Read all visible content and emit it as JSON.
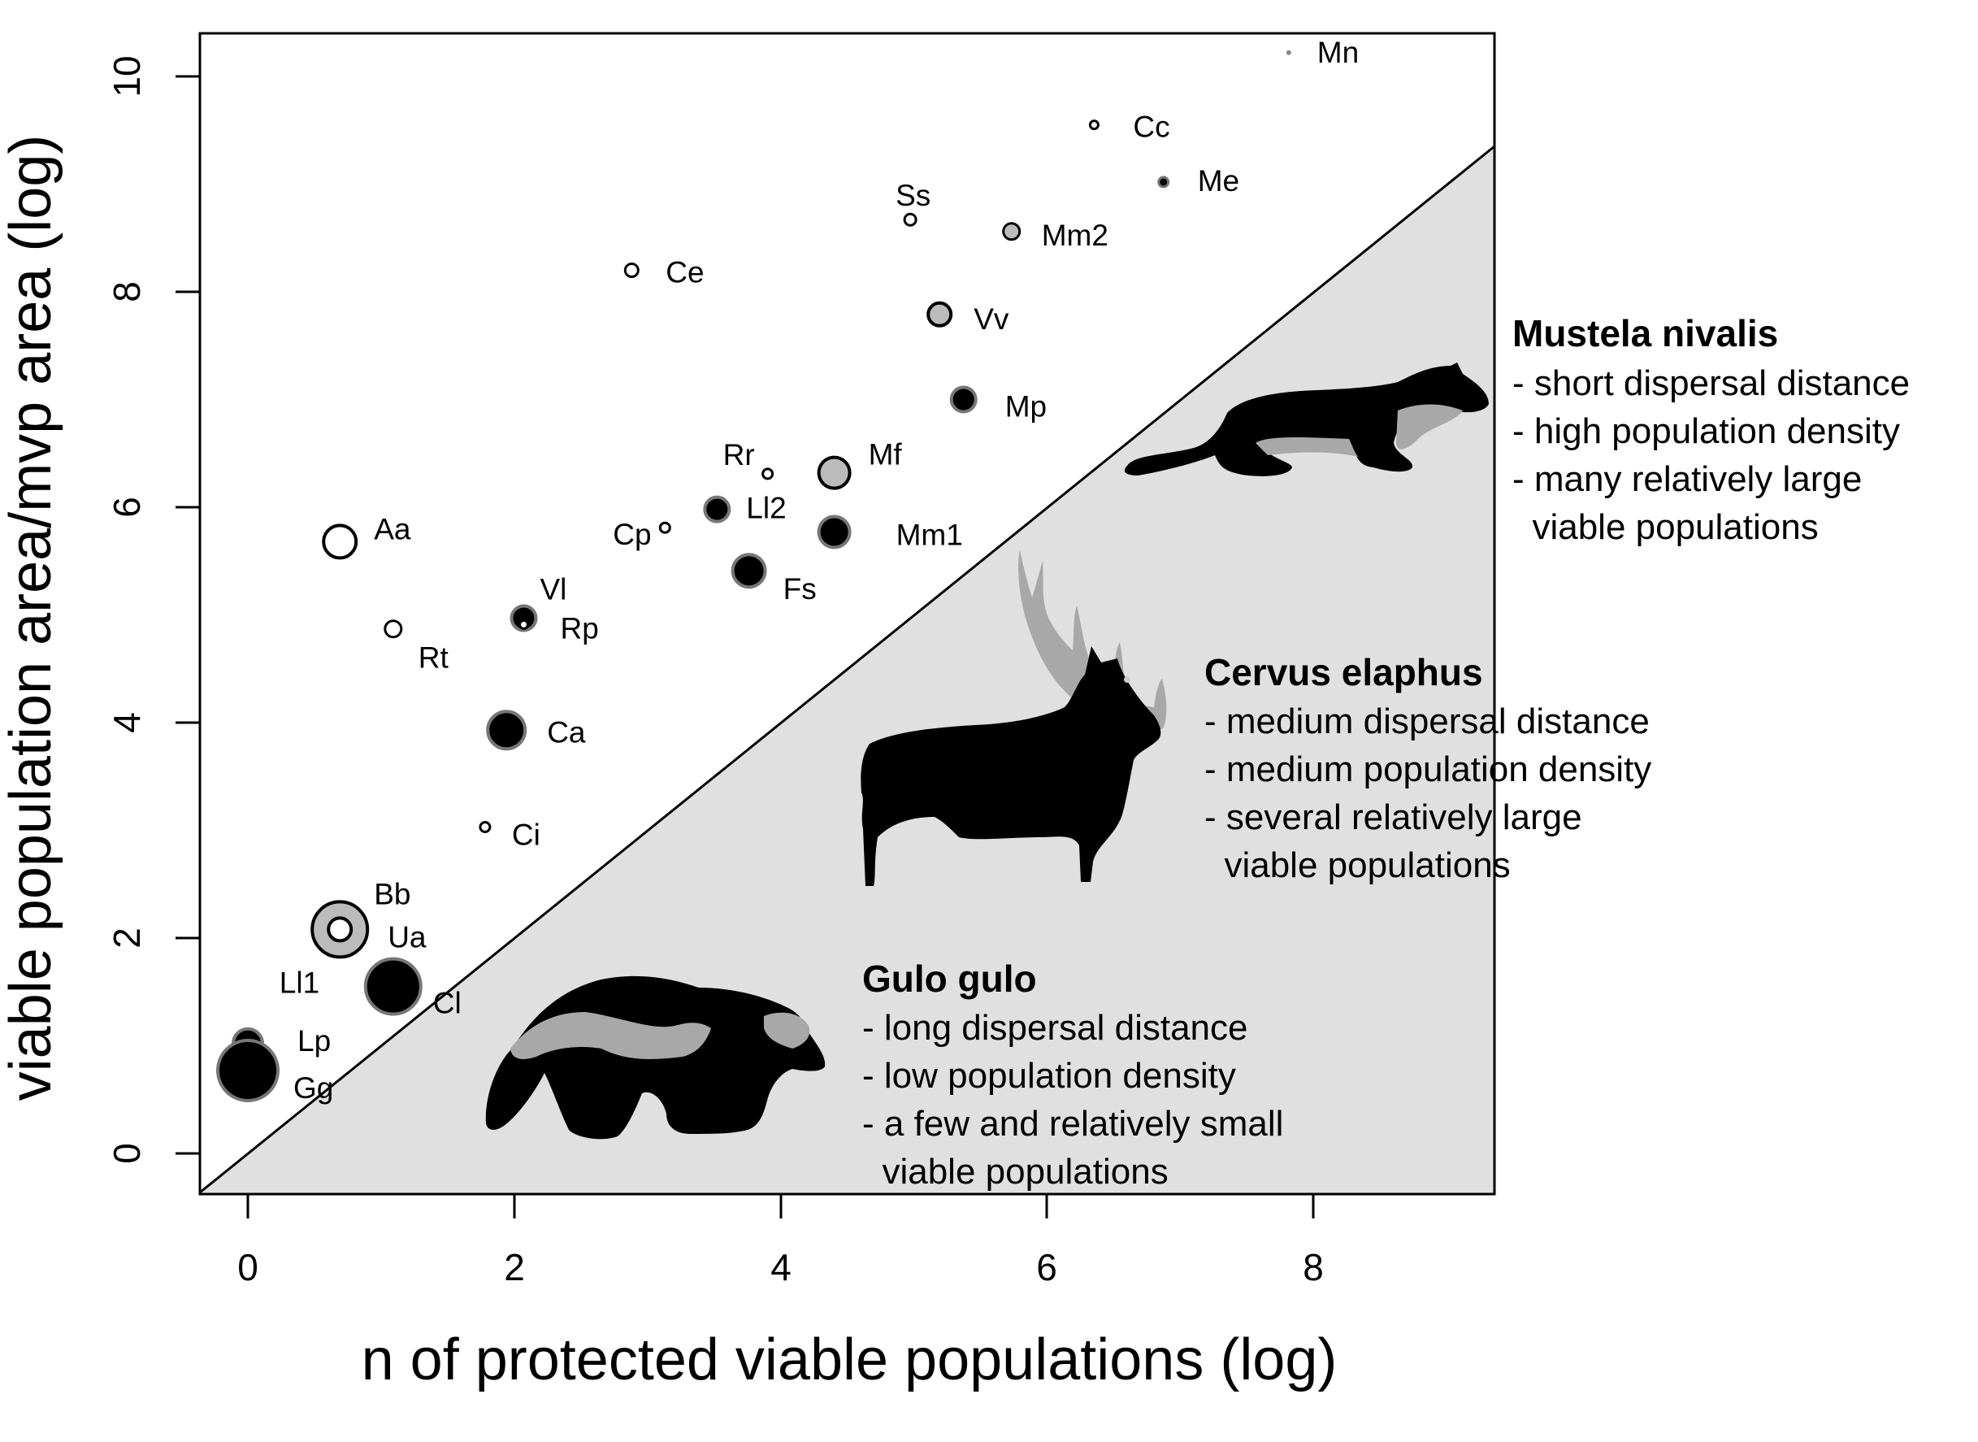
{
  "chart_data": {
    "type": "scatter",
    "title": "",
    "xlabel": "n of protected viable populations (log)",
    "ylabel": "viable population area/mvp area (log)",
    "xlim": [
      -0.36,
      9.35
    ],
    "ylim": [
      -0.38,
      10.4
    ],
    "xticks": [
      "0",
      "2",
      "4",
      "6",
      "8"
    ],
    "yticks": [
      "0",
      "2",
      "4",
      "6",
      "8",
      "10"
    ],
    "grid": false,
    "reference_line": {
      "type": "identity",
      "equation": "y = x",
      "shaded_below": true,
      "shade_color": "#e0e0e0"
    },
    "points": [
      {
        "label": "Mn",
        "x": 7.81,
        "y": 10.22,
        "r": 3,
        "fill": "#888888",
        "stroke": "none",
        "lx": 35,
        "ly": 12
      },
      {
        "label": "Cc",
        "x": 6.35,
        "y": 9.55,
        "r": 5,
        "fill": "#ffffff",
        "stroke": "#000000",
        "lx": 48,
        "ly": 15
      },
      {
        "label": "Me",
        "x": 6.87,
        "y": 9.02,
        "r": 6,
        "fill": "#000000",
        "stroke": "#777777",
        "lx": 42,
        "ly": 11
      },
      {
        "label": "Ss",
        "x": 4.97,
        "y": 8.67,
        "r": 7,
        "fill": "#ffffff",
        "stroke": "#000000",
        "lx": -18,
        "ly": -17
      },
      {
        "label": "Mm2",
        "x": 5.73,
        "y": 8.56,
        "r": 10,
        "fill": "#bbbbbb",
        "stroke": "#000000",
        "lx": 37,
        "ly": 17
      },
      {
        "label": "Ce",
        "x": 2.88,
        "y": 8.2,
        "r": 8,
        "fill": "#ffffff",
        "stroke": "#000000",
        "lx": 42,
        "ly": 15
      },
      {
        "label": "Vv",
        "x": 5.19,
        "y": 7.79,
        "r": 14,
        "fill": "#bbbbbb",
        "stroke": "#000000",
        "lx": 42,
        "ly": 18
      },
      {
        "label": "Mp",
        "x": 5.37,
        "y": 7.0,
        "r": 15,
        "fill": "#000000",
        "stroke": "#777777",
        "lx": 51,
        "ly": 21
      },
      {
        "label": "Rr",
        "x": 3.9,
        "y": 6.31,
        "r": 6,
        "fill": "#ffffff",
        "stroke": "#000000",
        "lx": -55,
        "ly": -11
      },
      {
        "label": "Mf",
        "x": 4.4,
        "y": 6.32,
        "r": 19,
        "fill": "#bbbbbb",
        "stroke": "#000000",
        "lx": 42,
        "ly": -10
      },
      {
        "label": "Ll2",
        "x": 3.52,
        "y": 5.98,
        "r": 15,
        "fill": "#000000",
        "stroke": "#777777",
        "lx": 36,
        "ly": 11
      },
      {
        "label": "Cp",
        "x": 3.13,
        "y": 5.81,
        "r": 6,
        "fill": "#ffffff",
        "stroke": "#000000",
        "lx": -64,
        "ly": 21
      },
      {
        "label": "Mm1",
        "x": 4.4,
        "y": 5.77,
        "r": 19,
        "fill": "#000000",
        "stroke": "#777777",
        "lx": 76,
        "ly": 16
      },
      {
        "label": "Aa",
        "x": 0.69,
        "y": 5.68,
        "r": 20,
        "fill": "#ffffff",
        "stroke": "#000000",
        "lx": 42,
        "ly": -3
      },
      {
        "label": "Fs",
        "x": 3.76,
        "y": 5.41,
        "r": 20,
        "fill": "#000000",
        "stroke": "#777777",
        "lx": 42,
        "ly": 35
      },
      {
        "label": "Vl",
        "x": 2.07,
        "y": 4.97,
        "r": 15,
        "fill": "#000000",
        "stroke": "#777777",
        "lx": 20,
        "ly": -23
      },
      {
        "label": "Rp",
        "x": 2.07,
        "y": 4.91,
        "r": 5,
        "fill": "#ffffff",
        "stroke": "#000000",
        "lx": 45,
        "ly": 17
      },
      {
        "label": "Rt",
        "x": 1.09,
        "y": 4.87,
        "r": 10,
        "fill": "#ffffff",
        "stroke": "#000000",
        "lx": 31,
        "ly": 48
      },
      {
        "label": "Ca",
        "x": 1.94,
        "y": 3.93,
        "r": 23,
        "fill": "#000000",
        "stroke": "#777777",
        "lx": 50,
        "ly": 15
      },
      {
        "label": "Ci",
        "x": 1.78,
        "y": 3.03,
        "r": 6,
        "fill": "#ffffff",
        "stroke": "#000000",
        "lx": 33,
        "ly": 22
      },
      {
        "label": "Ua",
        "x": 0.69,
        "y": 2.08,
        "r": 34,
        "fill": "#bbbbbb",
        "stroke": "#000000",
        "lx": 59,
        "ly": 22
      },
      {
        "label": "Bb",
        "x": 0.69,
        "y": 2.08,
        "r": 14,
        "fill": "#ffffff",
        "stroke": "#000000",
        "lx": 42,
        "ly": -31
      },
      {
        "label": "Ll1",
        "x": 1.09,
        "y": 1.55,
        "r": 0,
        "fill": "none",
        "stroke": "none",
        "lx": -140,
        "ly": 8
      },
      {
        "label": "Cl",
        "x": 1.09,
        "y": 1.55,
        "r": 34,
        "fill": "#000000",
        "stroke": "#777777",
        "lx": 49,
        "ly": 33
      },
      {
        "label": "Lp",
        "x": 0.0,
        "y": 1.02,
        "r": 18,
        "fill": "#000000",
        "stroke": "#777777",
        "lx": 61,
        "ly": 9
      },
      {
        "label": "Gg",
        "x": 0.0,
        "y": 0.77,
        "r": 37,
        "fill": "#000000",
        "stroke": "#777777",
        "lx": 56,
        "ly": 34
      }
    ],
    "annotations": [
      {
        "species": "Mustela nivalis",
        "lines": [
          "- short dispersal distance",
          "- high population density",
          "- many relatively large",
          "  viable populations"
        ]
      },
      {
        "species": "Cervus elaphus",
        "lines": [
          "- medium dispersal distance",
          "- medium population density",
          "- several relatively large",
          "  viable populations"
        ]
      },
      {
        "species": "Gulo gulo",
        "lines": [
          "- long dispersal distance",
          "- low population density",
          "- a few and relatively small",
          "  viable populations"
        ]
      }
    ]
  },
  "colors": {
    "shade": "#e0e0e0",
    "silhouette": "#000000",
    "silhouette_accent": "#a8a8a8"
  }
}
